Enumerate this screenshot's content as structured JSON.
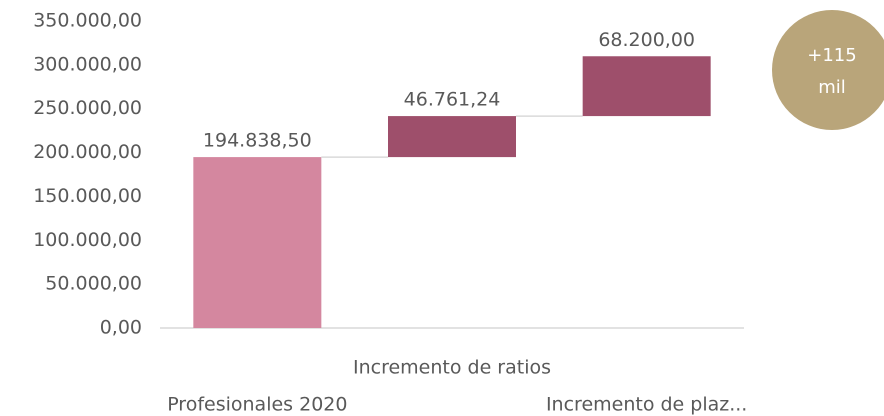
{
  "chart_data": {
    "type": "waterfall",
    "categories": [
      "Profesionales 2020",
      "Incremento de ratios",
      "Incremento de plaz..."
    ],
    "values": [
      194838.5,
      46761.24,
      68200
    ],
    "value_labels": [
      "194.838,50",
      "46.761,24",
      "68.200,00"
    ],
    "colors": [
      "#d4879f",
      "#9e4f6b",
      "#9e4f6b"
    ],
    "ylim": [
      0,
      350000
    ],
    "yticks": [
      {
        "value": 0,
        "label": "0,00"
      },
      {
        "value": 50000,
        "label": "50.000,00"
      },
      {
        "value": 100000,
        "label": "100.000,00"
      },
      {
        "value": 150000,
        "label": "150.000,00"
      },
      {
        "value": 200000,
        "label": "200.000,00"
      },
      {
        "value": 250000,
        "label": "250.000,00"
      },
      {
        "value": 300000,
        "label": "300.000,00"
      },
      {
        "value": 350000,
        "label": "350.000,00"
      }
    ],
    "badge": [
      "+115",
      "mil"
    ],
    "badge_color": "#b9a57a"
  }
}
